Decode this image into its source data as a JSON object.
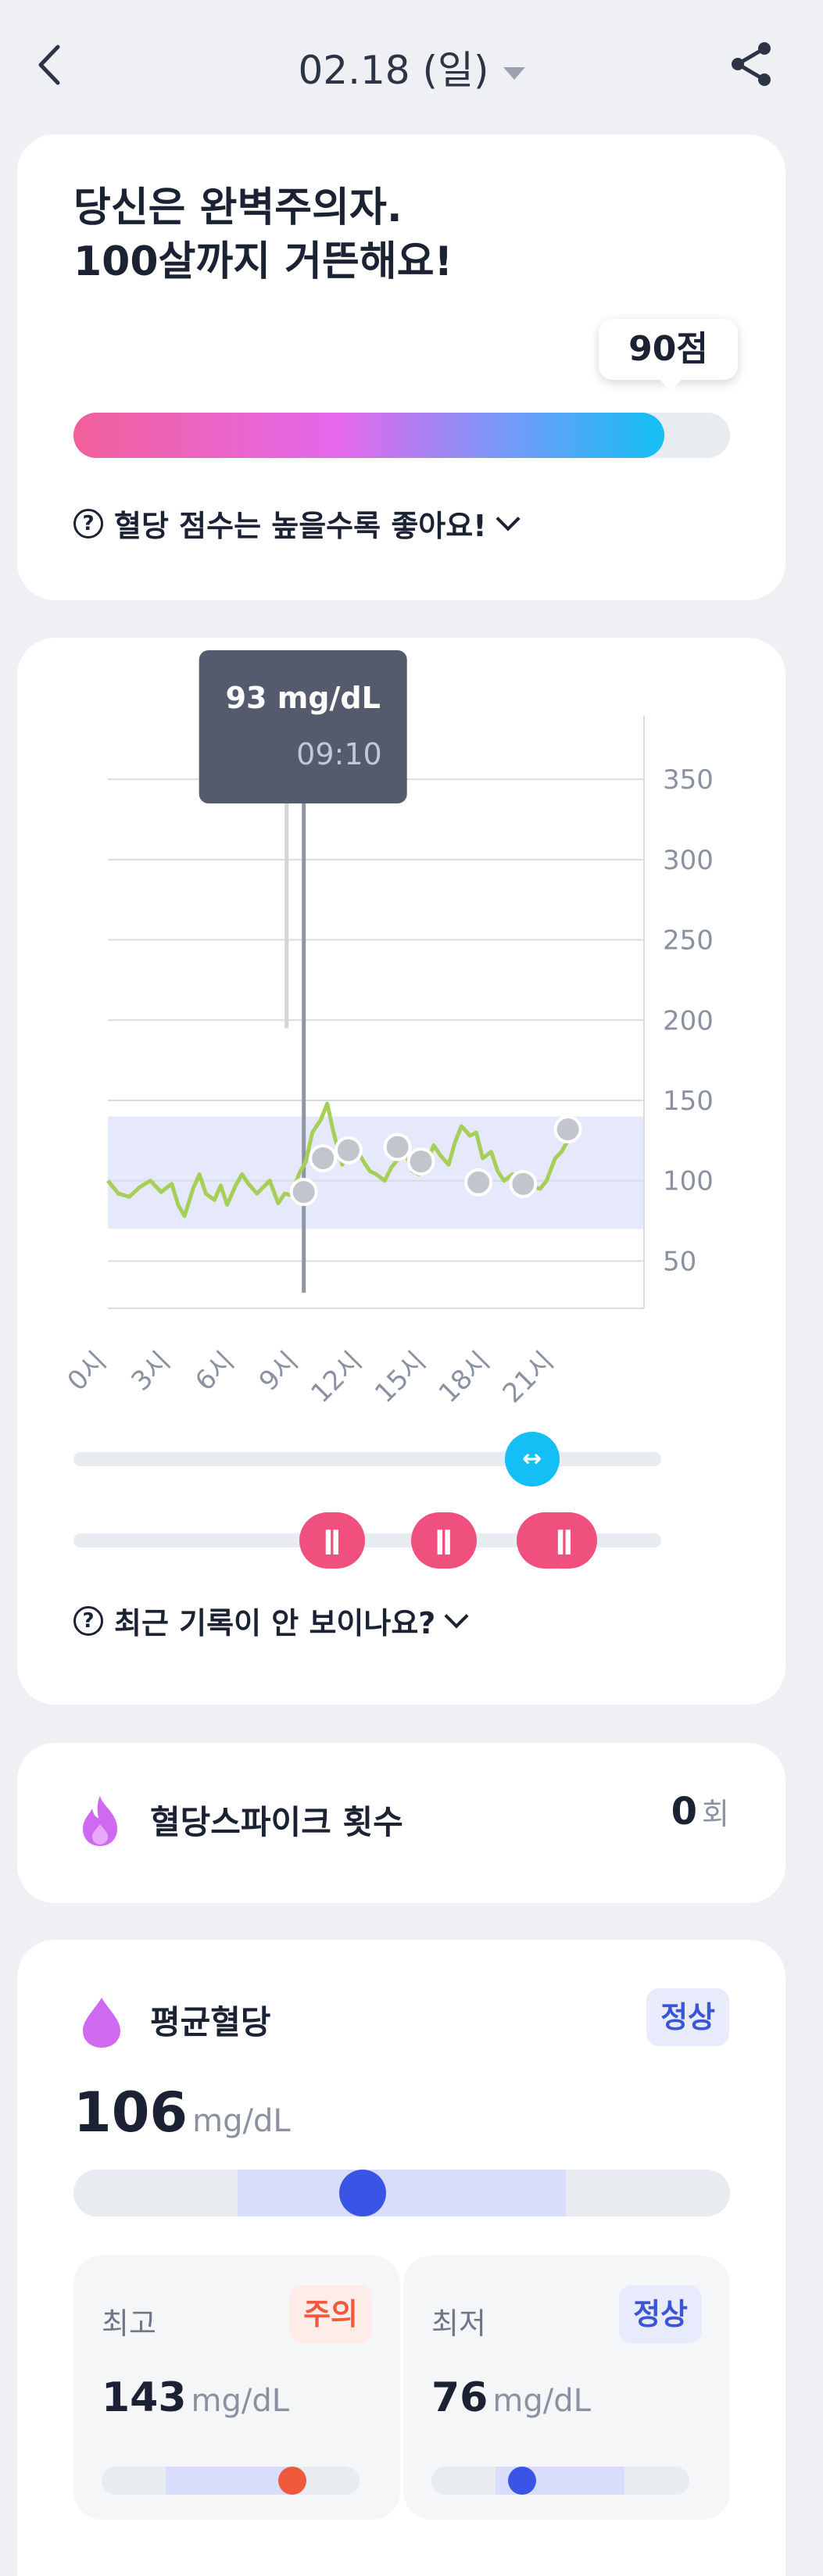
{
  "header": {
    "date": "02.18 (일)"
  },
  "score_card": {
    "line1": "당신은 완벽주의자.",
    "line2": "100살까지 거뜬해요!",
    "score_label": "90점",
    "score": 90,
    "score_max": 100,
    "hint": "혈당 점수는 높을수록 좋아요!"
  },
  "chart_card": {
    "tooltip_value": "93 mg/dL",
    "tooltip_time": "09:10",
    "hint": "최근 기록이 안 보이나요?"
  },
  "chart_data": {
    "type": "line",
    "x_ticks": [
      "0시",
      "3시",
      "6시",
      "9시",
      "12시",
      "15시",
      "18시",
      "21시"
    ],
    "y_ticks": [
      "350",
      "300",
      "250",
      "200",
      "150",
      "100",
      "50"
    ],
    "ylim": [
      40,
      370
    ],
    "xlim": [
      0,
      24
    ],
    "target_range": [
      70,
      140
    ],
    "series": [
      {
        "values_x": [
          0,
          0.5,
          1,
          1.5,
          2,
          2.5,
          3,
          3.3,
          3.6,
          4,
          4.3,
          4.6,
          5,
          5.3,
          5.6,
          6,
          6.3,
          6.6,
          7,
          7.3,
          7.6,
          8,
          8.3,
          8.6,
          9,
          9.3,
          9.6,
          10,
          10.3,
          10.6,
          11,
          11.3,
          11.6,
          12,
          12.3,
          12.6,
          13,
          13.3,
          13.6,
          14,
          14.3,
          14.6,
          15,
          15.3,
          15.6,
          16,
          16.3,
          16.6,
          17,
          17.3,
          17.6,
          18,
          18.3,
          18.6,
          19,
          19.3,
          19.6,
          20,
          20.3,
          20.6,
          21,
          21.3,
          21.6,
          22
        ],
        "values": [
          100,
          92,
          90,
          96,
          100,
          93,
          98,
          85,
          78,
          95,
          104,
          92,
          88,
          97,
          85,
          97,
          104,
          98,
          92,
          96,
          100,
          86,
          92,
          91,
          105,
          112,
          130,
          138,
          148,
          130,
          110,
          118,
          122,
          112,
          106,
          104,
          100,
          108,
          113,
          116,
          106,
          104,
          112,
          122,
          116,
          110,
          124,
          134,
          128,
          130,
          114,
          118,
          106,
          100,
          104,
          95,
          100,
          96,
          95,
          100,
          114,
          118,
          125,
          132
        ]
      }
    ],
    "markers": [
      {
        "x": 9.2,
        "y": 93
      },
      {
        "x": 10.1,
        "y": 114
      },
      {
        "x": 11.3,
        "y": 119
      },
      {
        "x": 13.6,
        "y": 121
      },
      {
        "x": 14.7,
        "y": 112
      },
      {
        "x": 17.4,
        "y": 99
      },
      {
        "x": 19.5,
        "y": 98
      },
      {
        "x": 21.6,
        "y": 132
      }
    ],
    "selected_time": 9.2,
    "colors": {
      "line": "#a6cf5a",
      "band": "#e6e9fb",
      "marker": "#c2c5cc"
    }
  },
  "sliders": {
    "time_icon": "dumbbell-icon",
    "meal_icon": "fork-knife-icon",
    "time_position": 0.78,
    "meals": [
      0.44,
      0.63,
      0.81,
      0.835
    ]
  },
  "spike": {
    "label": "혈당스파이크 횟수",
    "count": "0",
    "unit": "회",
    "icon": "flame-icon"
  },
  "average": {
    "label": "평균혈당",
    "icon": "drop-icon",
    "status": "정상",
    "value": "106",
    "unit": "mg/dL",
    "range_position": 0.44,
    "max_label": "최고",
    "max_status": "주의",
    "max_value": "143",
    "max_unit": "mg/dL",
    "max_position": 0.74,
    "min_label": "최저",
    "min_status": "정상",
    "min_value": "76",
    "min_unit": "mg/dL",
    "min_position": 0.35
  },
  "colors": {
    "accent": "#14bff5",
    "warn": "#f05a3c",
    "normal": "#3a55d6",
    "meal": "#f0507e",
    "purple": "#cf6af0"
  }
}
